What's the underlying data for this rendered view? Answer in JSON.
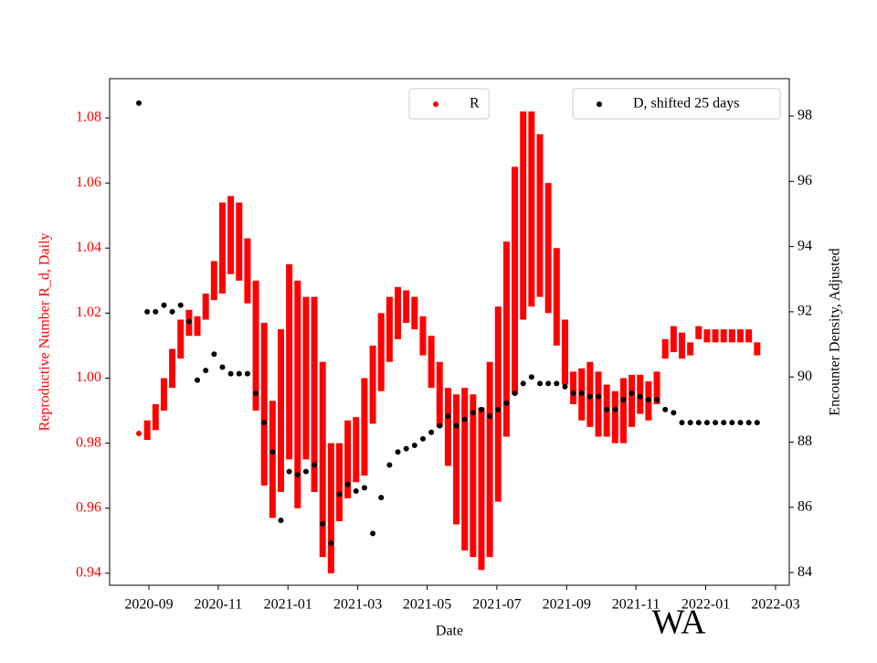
{
  "chart_data": {
    "type": "scatter",
    "x_label": "Date",
    "y_label": "Reproductive Number R_d, Daily",
    "y2_label": "Encounter Density, Adjusted",
    "annotation": "WA",
    "x": [
      2020.643,
      2020.663,
      2020.683,
      2020.703,
      2020.723,
      2020.743,
      2020.763,
      2020.783,
      2020.803,
      2020.823,
      2020.843,
      2020.863,
      2020.883,
      2020.903,
      2020.923,
      2020.943,
      2020.963,
      2020.983,
      2021.003,
      2021.023,
      2021.043,
      2021.063,
      2021.083,
      2021.103,
      2021.123,
      2021.143,
      2021.163,
      2021.183,
      2021.203,
      2021.223,
      2021.243,
      2021.263,
      2021.283,
      2021.303,
      2021.323,
      2021.343,
      2021.363,
      2021.383,
      2021.403,
      2021.423,
      2021.443,
      2021.463,
      2021.483,
      2021.503,
      2021.523,
      2021.543,
      2021.563,
      2021.583,
      2021.603,
      2021.623,
      2021.643,
      2021.663,
      2021.683,
      2021.703,
      2021.723,
      2021.743,
      2021.763,
      2021.783,
      2021.803,
      2021.823,
      2021.843,
      2021.863,
      2021.883,
      2021.903,
      2021.923,
      2021.943,
      2021.963,
      2021.983,
      2022.003,
      2022.023,
      2022.043,
      2022.063,
      2022.083,
      2022.103,
      2022.123
    ],
    "series": [
      {
        "name": "R",
        "color": "#ff0000",
        "axis": "y",
        "values": [
          0.983,
          0.984,
          0.988,
          0.995,
          1.003,
          1.012,
          1.017,
          1.016,
          1.022,
          1.03,
          1.04,
          1.044,
          1.042,
          1.033,
          1.01,
          0.992,
          0.975,
          0.99,
          1.005,
          0.995,
          1.0,
          0.995,
          0.975,
          0.96,
          0.968,
          0.975,
          0.978,
          0.985,
          0.998,
          1.008,
          1.015,
          1.02,
          1.022,
          1.02,
          1.013,
          1.005,
          0.995,
          0.985,
          0.975,
          0.972,
          0.97,
          0.966,
          0.975,
          0.992,
          1.012,
          1.03,
          1.05,
          1.052,
          1.05,
          1.04,
          1.025,
          1.008,
          0.997,
          0.995,
          0.995,
          0.992,
          0.99,
          0.988,
          0.99,
          0.993,
          0.995,
          0.993,
          0.997,
          1.009,
          1.012,
          1.01,
          1.009,
          1.014,
          1.013,
          1.013,
          1.013,
          1.013,
          1.013,
          1.013,
          1.009
        ],
        "errors": [
          0.0,
          0.003,
          0.004,
          0.005,
          0.006,
          0.006,
          0.004,
          0.003,
          0.004,
          0.006,
          0.014,
          0.012,
          0.012,
          0.01,
          0.02,
          0.025,
          0.018,
          0.025,
          0.03,
          0.035,
          0.025,
          0.03,
          0.03,
          0.02,
          0.012,
          0.012,
          0.01,
          0.015,
          0.012,
          0.012,
          0.01,
          0.008,
          0.005,
          0.005,
          0.006,
          0.008,
          0.01,
          0.012,
          0.02,
          0.025,
          0.025,
          0.025,
          0.03,
          0.03,
          0.03,
          0.035,
          0.032,
          0.03,
          0.025,
          0.02,
          0.015,
          0.01,
          0.005,
          0.008,
          0.01,
          0.01,
          0.008,
          0.008,
          0.01,
          0.008,
          0.006,
          0.006,
          0.005,
          0.003,
          0.004,
          0.004,
          0.002,
          0.002,
          0.002,
          0.002,
          0.002,
          0.002,
          0.002,
          0.002,
          0.002
        ]
      },
      {
        "name": "D, shifted 25 days",
        "color": "#000000",
        "axis": "y2",
        "values": [
          98.4,
          92.0,
          92.0,
          92.2,
          92.0,
          92.2,
          91.7,
          89.9,
          90.2,
          90.7,
          90.3,
          90.1,
          90.1,
          90.1,
          89.5,
          88.6,
          87.7,
          85.6,
          87.1,
          87.0,
          87.1,
          87.3,
          85.5,
          84.9,
          86.4,
          86.7,
          86.5,
          86.6,
          85.2,
          86.3,
          87.3,
          87.7,
          87.8,
          87.9,
          88.1,
          88.3,
          88.5,
          88.8,
          88.5,
          88.7,
          88.9,
          89.0,
          88.8,
          89.0,
          89.2,
          89.5,
          89.8,
          90.0,
          89.8,
          89.8,
          89.8,
          89.7,
          89.5,
          89.5,
          89.4,
          89.4,
          89.0,
          89.0,
          89.3,
          89.5,
          89.4,
          89.3,
          89.3,
          89.0,
          88.9,
          88.6,
          88.6,
          88.6,
          88.6,
          88.6,
          88.6,
          88.6,
          88.6,
          88.6,
          88.6
        ]
      }
    ],
    "xlim": [
      2020.573,
      2022.2
    ],
    "xticks": [
      {
        "value": 2020.667,
        "label": "2020-09"
      },
      {
        "value": 2020.833,
        "label": "2020-11"
      },
      {
        "value": 2021.0,
        "label": "2021-01"
      },
      {
        "value": 2021.167,
        "label": "2021-03"
      },
      {
        "value": 2021.333,
        "label": "2021-05"
      },
      {
        "value": 2021.5,
        "label": "2021-07"
      },
      {
        "value": 2021.667,
        "label": "2021-09"
      },
      {
        "value": 2021.833,
        "label": "2021-11"
      },
      {
        "value": 2022.0,
        "label": "2022-01"
      },
      {
        "value": 2022.167,
        "label": "2022-03"
      }
    ],
    "ylim": [
      0.9363,
      1.0921
    ],
    "yticks": [
      0.94,
      0.96,
      0.98,
      {
        "value": 1,
        "label": "1.00"
      },
      1.02,
      1.04,
      1.06,
      1.08
    ],
    "y2lim": [
      83.61,
      99.15
    ],
    "y2ticks": [
      84,
      86,
      88,
      90,
      92,
      94,
      96,
      98
    ],
    "y_axis_color": "#ff0000"
  }
}
